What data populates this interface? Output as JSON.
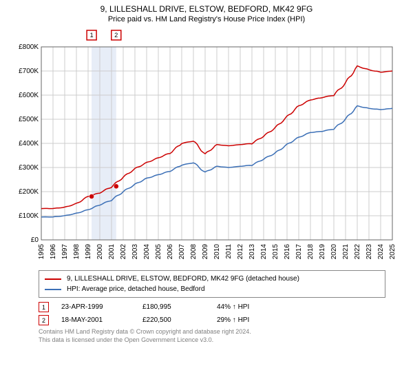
{
  "title": "9, LILLESHALL DRIVE, ELSTOW, BEDFORD, MK42 9FG",
  "subtitle": "Price paid vs. HM Land Registry's House Price Index (HPI)",
  "chart": {
    "type": "line",
    "background_color": "#ffffff",
    "grid_color": "#cccccc",
    "highlight_band_color": "#e7edf7",
    "ylim": [
      0,
      800
    ],
    "ytick_step": 100,
    "ytick_prefix": "£",
    "ytick_suffix": "K",
    "xlim": [
      1995,
      2025
    ],
    "xticks": [
      1995,
      1996,
      1997,
      1998,
      1999,
      2000,
      2001,
      2002,
      2003,
      2004,
      2005,
      2006,
      2007,
      2008,
      2009,
      2010,
      2011,
      2012,
      2013,
      2014,
      2015,
      2016,
      2017,
      2018,
      2019,
      2020,
      2021,
      2022,
      2023,
      2024,
      2025
    ],
    "series": [
      {
        "name": "9, LILLESHALL DRIVE, ELSTOW, BEDFORD, MK42 9FG (detached house)",
        "color": "#cc0000",
        "line_width": 1.5,
        "data": [
          [
            1995,
            130
          ],
          [
            1996,
            130
          ],
          [
            1997,
            135
          ],
          [
            1998,
            150
          ],
          [
            1999,
            180
          ],
          [
            2000,
            195
          ],
          [
            2001,
            220
          ],
          [
            2002,
            260
          ],
          [
            2003,
            295
          ],
          [
            2004,
            320
          ],
          [
            2005,
            340
          ],
          [
            2006,
            360
          ],
          [
            2007,
            400
          ],
          [
            2008,
            410
          ],
          [
            2009,
            355
          ],
          [
            2010,
            395
          ],
          [
            2011,
            390
          ],
          [
            2012,
            395
          ],
          [
            2013,
            400
          ],
          [
            2014,
            430
          ],
          [
            2015,
            465
          ],
          [
            2016,
            510
          ],
          [
            2017,
            555
          ],
          [
            2018,
            580
          ],
          [
            2019,
            590
          ],
          [
            2020,
            600
          ],
          [
            2021,
            650
          ],
          [
            2022,
            720
          ],
          [
            2023,
            705
          ],
          [
            2024,
            695
          ],
          [
            2025,
            700
          ]
        ]
      },
      {
        "name": "HPI: Average price, detached house, Bedford",
        "color": "#3b6fb6",
        "line_width": 1.5,
        "data": [
          [
            1995,
            95
          ],
          [
            1996,
            95
          ],
          [
            1997,
            100
          ],
          [
            1998,
            110
          ],
          [
            1999,
            125
          ],
          [
            2000,
            145
          ],
          [
            2001,
            165
          ],
          [
            2002,
            200
          ],
          [
            2003,
            230
          ],
          [
            2004,
            255
          ],
          [
            2005,
            270
          ],
          [
            2006,
            285
          ],
          [
            2007,
            310
          ],
          [
            2008,
            320
          ],
          [
            2009,
            280
          ],
          [
            2010,
            305
          ],
          [
            2011,
            300
          ],
          [
            2012,
            305
          ],
          [
            2013,
            310
          ],
          [
            2014,
            335
          ],
          [
            2015,
            360
          ],
          [
            2016,
            395
          ],
          [
            2017,
            425
          ],
          [
            2018,
            445
          ],
          [
            2019,
            450
          ],
          [
            2020,
            460
          ],
          [
            2021,
            500
          ],
          [
            2022,
            555
          ],
          [
            2023,
            545
          ],
          [
            2024,
            540
          ],
          [
            2025,
            545
          ]
        ]
      }
    ],
    "sale_markers": [
      {
        "id": "1",
        "x": 1999.3,
        "y": 180
      },
      {
        "id": "2",
        "x": 2001.4,
        "y": 222
      }
    ],
    "highlight_band": [
      1999.3,
      2001.4
    ],
    "marker_border_color": "#cc0000",
    "marker_fill_color": "#cc0000"
  },
  "legend": {
    "items": [
      {
        "color": "#cc0000",
        "label": "9, LILLESHALL DRIVE, ELSTOW, BEDFORD, MK42 9FG (detached house)"
      },
      {
        "color": "#3b6fb6",
        "label": "HPI: Average price, detached house, Bedford"
      }
    ]
  },
  "sales": [
    {
      "id": "1",
      "date": "23-APR-1999",
      "price": "£180,995",
      "delta": "44% ↑ HPI"
    },
    {
      "id": "2",
      "date": "18-MAY-2001",
      "price": "£220,500",
      "delta": "29% ↑ HPI"
    }
  ],
  "footnote_line1": "Contains HM Land Registry data © Crown copyright and database right 2024.",
  "footnote_line2": "This data is licensed under the Open Government Licence v3.0."
}
